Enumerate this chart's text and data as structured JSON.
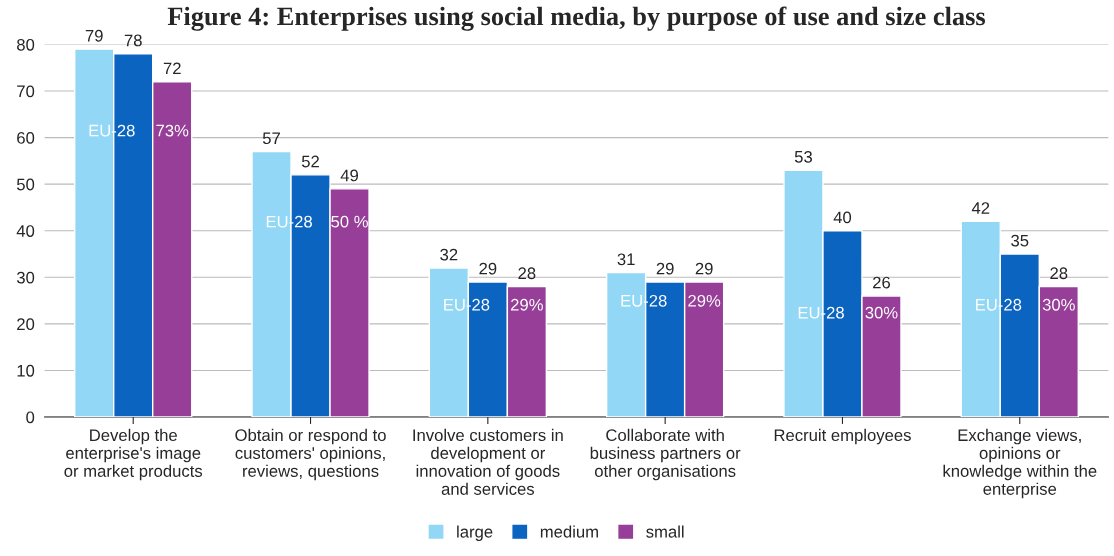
{
  "chart_data": {
    "type": "bar",
    "title": "Figure 4: Enterprises using social media, by purpose of use and size class",
    "categories": [
      "Develop the\nenterprise's image\nor market products",
      "Obtain or respond to\ncustomers' opinions,\nreviews, questions",
      "Involve customers in\ndevelopment or\ninnovation of goods\nand services",
      "Collaborate with\nbusiness partners or\nother organisations",
      "Recruit employees",
      "Exchange views,\nopinions or\nknowledge within the\nenterprise"
    ],
    "series": [
      {
        "name": "large",
        "color": "#92d8f6",
        "values": [
          79,
          57,
          32,
          31,
          53,
          42
        ]
      },
      {
        "name": "medium",
        "color": "#0a64c0",
        "values": [
          78,
          52,
          29,
          29,
          40,
          35
        ]
      },
      {
        "name": "small",
        "color": "#973f98",
        "values": [
          72,
          49,
          28,
          29,
          26,
          28
        ]
      }
    ],
    "ylim": [
      0,
      80
    ],
    "yticks": [
      0,
      10,
      20,
      30,
      40,
      50,
      60,
      70,
      80
    ],
    "grid": "y",
    "legend": "bottom",
    "data_labels": true,
    "annotations": [
      "EU-28",
      "73%",
      "EU-28",
      "50 %",
      "EU-28",
      "29%",
      "EU-28",
      "29%",
      "EU-28",
      "30%",
      "EU-28",
      "30%"
    ]
  }
}
